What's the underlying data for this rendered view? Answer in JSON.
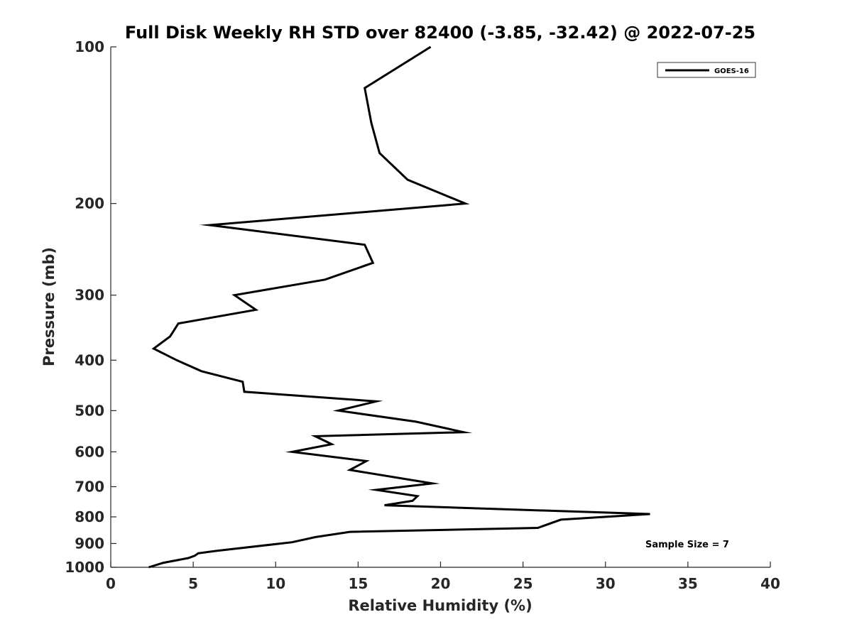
{
  "chart_data": {
    "type": "line",
    "title": "Full Disk Weekly RH STD over 82400 (-3.85, -32.42) @ 2022-07-25",
    "xlabel": "Relative Humidity (%)",
    "ylabel": "Pressure (mb)",
    "xlim": [
      0,
      40
    ],
    "ylim": [
      100,
      1000
    ],
    "y_scale": "log",
    "y_reversed": true,
    "xticks": [
      0,
      5,
      10,
      15,
      20,
      25,
      30,
      35,
      40
    ],
    "yticks": [
      100,
      200,
      300,
      400,
      500,
      600,
      700,
      800,
      900,
      1000
    ],
    "grid": false,
    "legend_position": "top-right",
    "series": [
      {
        "name": "GOES-16",
        "color": "#000000",
        "x": [
          19.4,
          15.4,
          15.8,
          16.3,
          18.0,
          21.5,
          6.0,
          15.4,
          15.9,
          13.0,
          7.5,
          8.8,
          4.1,
          3.6,
          2.6,
          4.0,
          5.5,
          8.0,
          8.1,
          16.1,
          13.8,
          18.5,
          21.4,
          12.4,
          13.4,
          11.0,
          15.5,
          14.5,
          19.5,
          16.1,
          18.6,
          18.3,
          16.6,
          32.7,
          27.3,
          25.9,
          14.5,
          12.4,
          11.0,
          6.4,
          5.3,
          5.1,
          4.7,
          3.2,
          2.3
        ],
        "y": [
          100,
          120,
          140,
          160,
          180,
          200,
          220,
          240,
          260,
          280,
          300,
          320,
          340,
          360,
          380,
          400,
          420,
          440,
          460,
          480,
          500,
          525,
          550,
          560,
          580,
          600,
          625,
          650,
          690,
          710,
          730,
          745,
          760,
          790,
          810,
          840,
          855,
          875,
          895,
          930,
          940,
          950,
          960,
          980,
          1000
        ]
      }
    ],
    "annotations": [
      "Sample Size = 7"
    ]
  }
}
